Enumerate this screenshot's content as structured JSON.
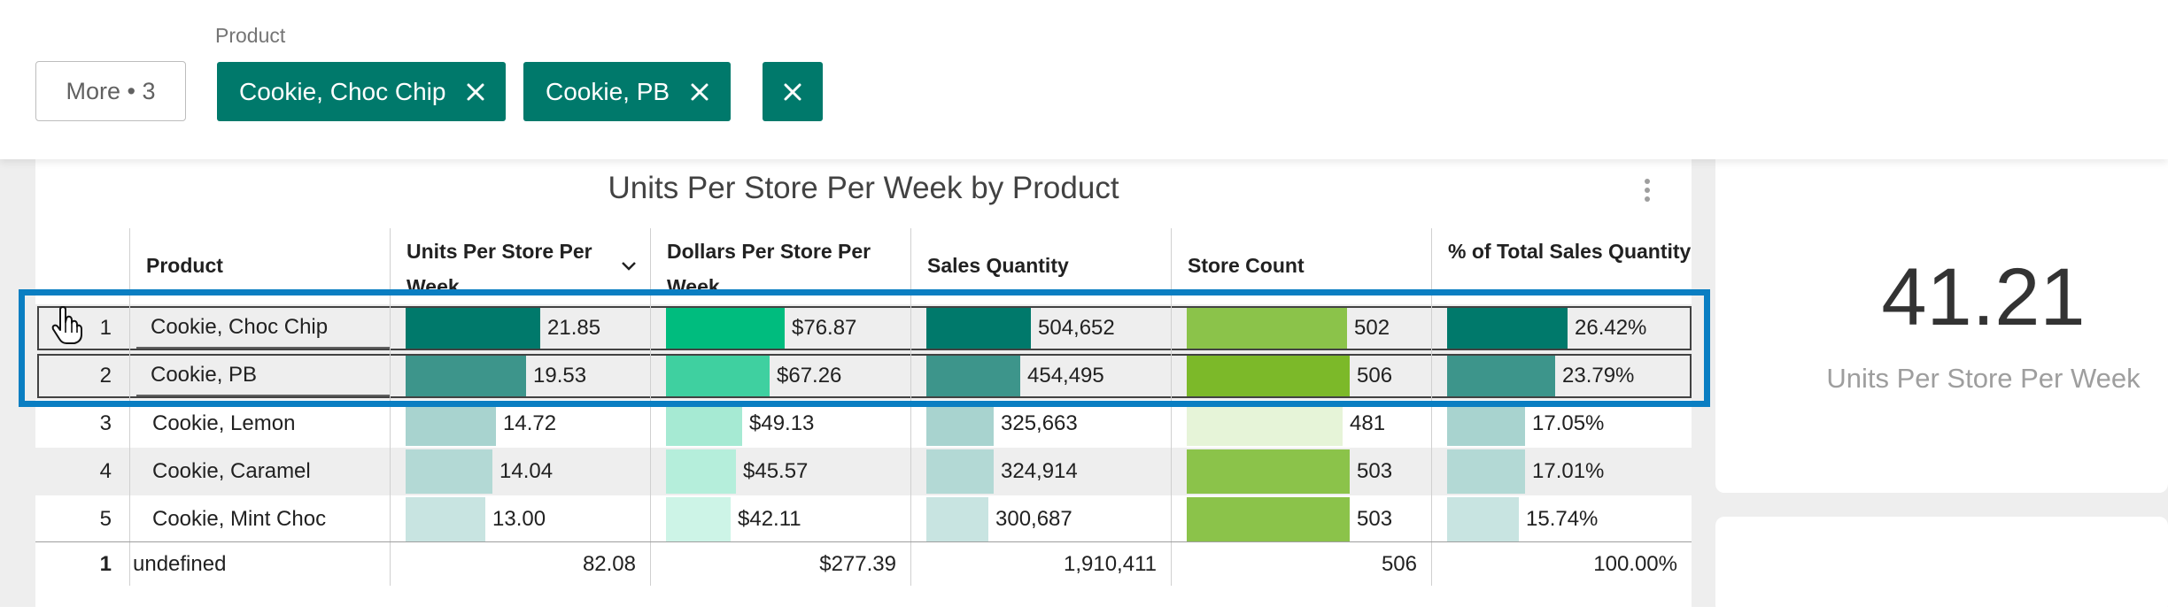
{
  "filter": {
    "label": "Product",
    "more_label": "More • 3",
    "chips": [
      {
        "label": "Cookie, Choc Chip"
      },
      {
        "label": "Cookie, PB"
      }
    ]
  },
  "visual": {
    "title": "Units Per Store Per Week by Product",
    "columns": [
      "Product",
      "Units Per Store Per Week",
      "Dollars Per Store Per Week",
      "Sales Quantity",
      "Store Count",
      "% of Total Sales Quantity"
    ],
    "rows": [
      {
        "num": "1",
        "product": "Cookie, Choc Chip",
        "units": "21.85",
        "dollars": "$76.87",
        "qty": "504,652",
        "stores": "502",
        "pct": "26.42%",
        "selected": true
      },
      {
        "num": "2",
        "product": "Cookie, PB",
        "units": "19.53",
        "dollars": "$67.26",
        "qty": "454,495",
        "stores": "506",
        "pct": "23.79%",
        "selected": true
      },
      {
        "num": "3",
        "product": "Cookie, Lemon",
        "units": "14.72",
        "dollars": "$49.13",
        "qty": "325,663",
        "stores": "481",
        "pct": "17.05%",
        "selected": false
      },
      {
        "num": "4",
        "product": "Cookie, Caramel",
        "units": "14.04",
        "dollars": "$45.57",
        "qty": "324,914",
        "stores": "503",
        "pct": "17.01%",
        "selected": false
      },
      {
        "num": "5",
        "product": "Cookie, Mint Choc",
        "units": "13.00",
        "dollars": "$42.11",
        "qty": "300,687",
        "stores": "503",
        "pct": "15.74%",
        "selected": false
      }
    ],
    "totals": {
      "num": "1",
      "product": "undefined",
      "units": "82.08",
      "dollars": "$277.39",
      "qty": "1,910,411",
      "stores": "506",
      "pct": "100.00%"
    }
  },
  "kpi": {
    "value": "41.21",
    "label": "Units Per Store Per Week"
  },
  "colors": {
    "chip": "#00796b",
    "selection_outline": "#0a7ec2"
  },
  "icons": [
    "close-icon",
    "sort-chevron-icon",
    "kebab-menu-icon",
    "hand-pointer-icon"
  ]
}
